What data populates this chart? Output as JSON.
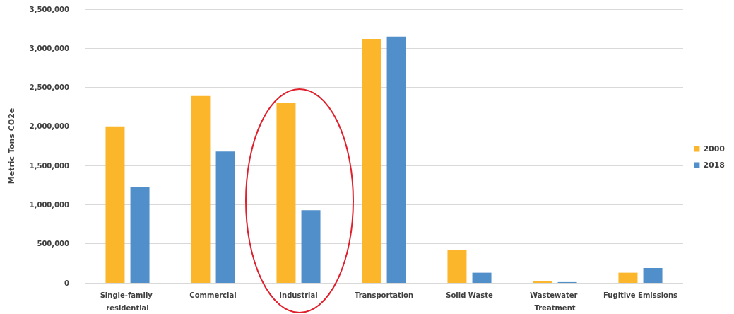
{
  "chart_data": {
    "type": "bar",
    "ylabel": "Metric Tons CO2e",
    "categories": [
      "Single-family residential",
      "Commercial",
      "Industrial",
      "Transportation",
      "Solid Waste",
      "Wastewater Treatment",
      "Fugitive Emissions"
    ],
    "series": [
      {
        "name": "2000",
        "color": "#fbb62b",
        "values": [
          2000000,
          2390000,
          2300000,
          3120000,
          420000,
          20000,
          130000
        ]
      },
      {
        "name": "2018",
        "color": "#518fcb",
        "values": [
          1220000,
          1680000,
          930000,
          3150000,
          130000,
          10000,
          190000
        ]
      }
    ],
    "ylim": [
      0,
      3500000
    ],
    "yticks": [
      0,
      {
        "value": 500000,
        "label": "500,000"
      },
      {
        "value": 1000000,
        "label": "1,000,000"
      },
      {
        "value": 1500000,
        "label": "1,500,000"
      },
      {
        "value": 2000000,
        "label": "2,000,000"
      },
      {
        "value": 2500000,
        "label": "2,500,000"
      },
      {
        "value": 3000000,
        "label": "3,000,000"
      },
      {
        "value": 3500000,
        "label": "3,500,000"
      }
    ],
    "grid": "y",
    "legend": "right"
  }
}
